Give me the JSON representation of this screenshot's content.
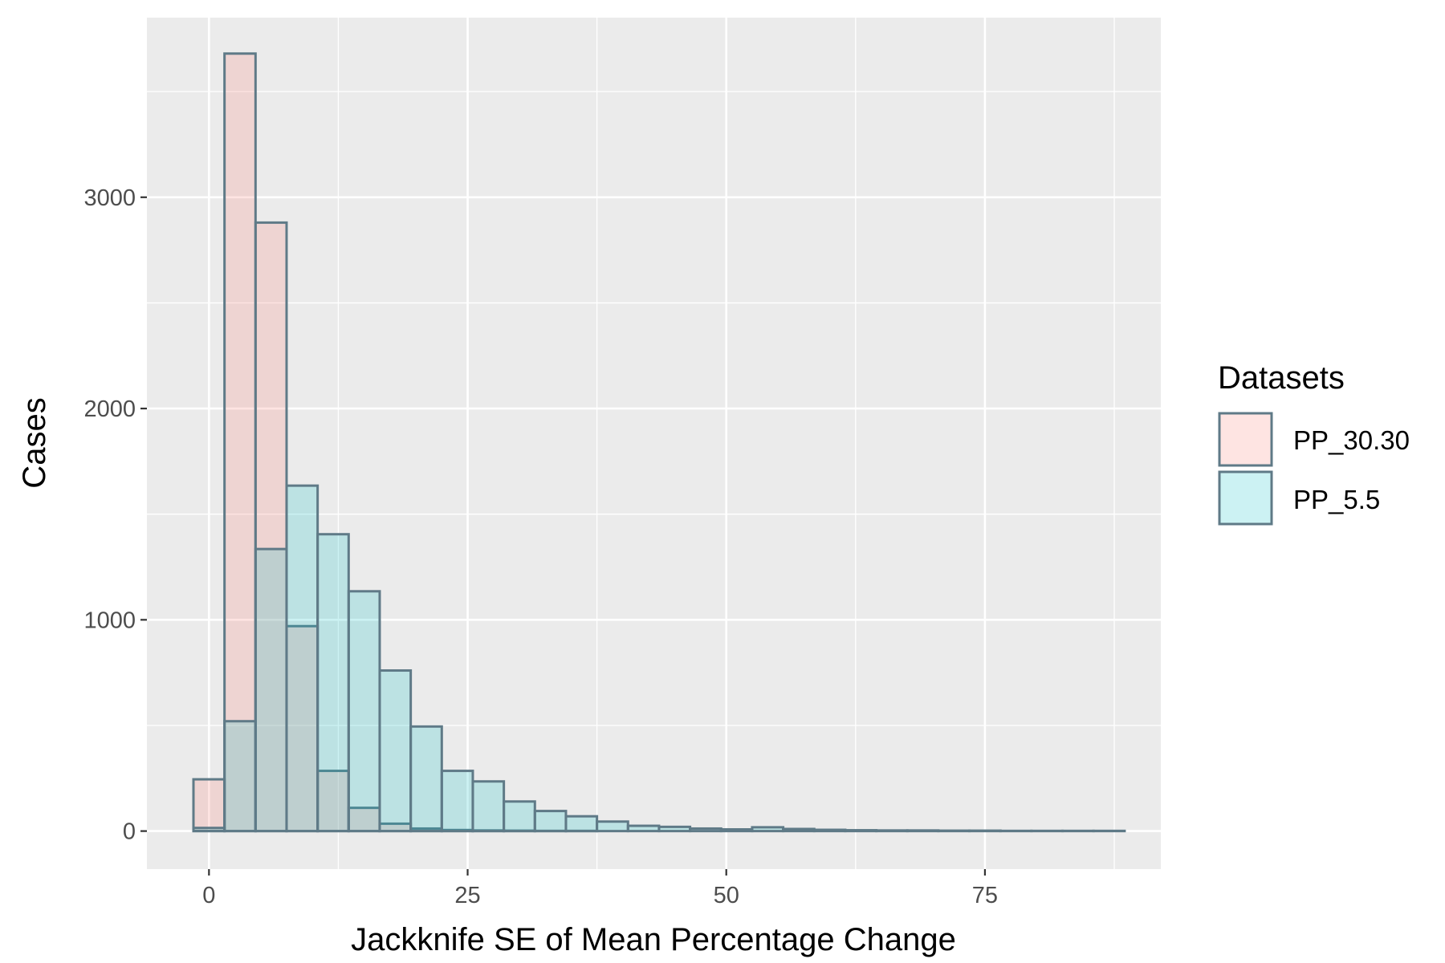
{
  "chart_data": {
    "type": "histogram",
    "xlabel": "Jackknife SE of Mean Percentage Change",
    "ylabel": "Cases",
    "xlim": [
      -6,
      92
    ],
    "ylim": [
      -180,
      3850
    ],
    "x_ticks": [
      0,
      25,
      50,
      75
    ],
    "y_ticks": [
      0,
      1000,
      2000,
      3000
    ],
    "grid": true,
    "bin_width": 3.0,
    "bin_start": -1.5,
    "legend": {
      "title": "Datasets",
      "placement": "right"
    },
    "colors": {
      "panel": "#ebebeb",
      "grid": "#ffffff",
      "outline": "#5f7a87",
      "tick": "#333333"
    },
    "series": [
      {
        "name": "PP_30.30",
        "fill": "#f8766d",
        "fill_opacity": 0.2,
        "values": [
          245,
          3680,
          2880,
          970,
          285,
          110,
          35,
          12,
          5,
          3,
          2,
          1,
          1,
          0,
          0,
          0,
          0,
          0,
          0,
          0,
          0,
          0,
          0,
          0,
          0,
          0,
          0,
          0,
          0,
          0
        ]
      },
      {
        "name": "PP_5.5",
        "fill": "#00bfc4",
        "fill_opacity": 0.2,
        "values": [
          15,
          520,
          1335,
          1635,
          1405,
          1135,
          760,
          495,
          285,
          235,
          140,
          95,
          70,
          45,
          25,
          20,
          12,
          8,
          18,
          10,
          6,
          4,
          3,
          3,
          2,
          2,
          1,
          1,
          1,
          1
        ]
      }
    ]
  }
}
